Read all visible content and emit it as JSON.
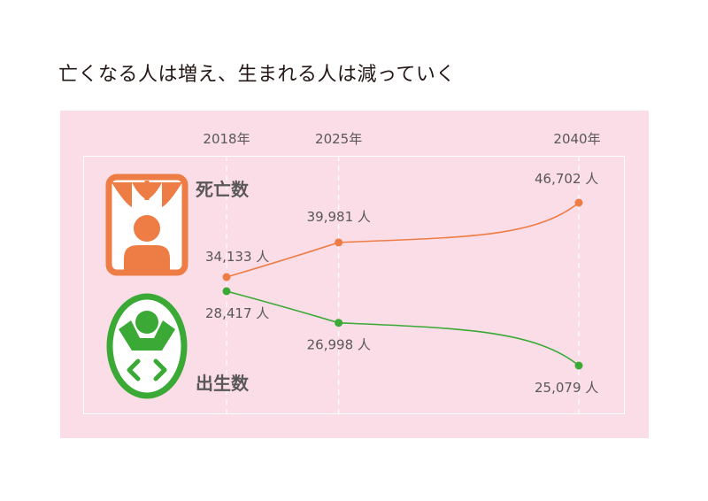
{
  "title": "亡くなる人は増え、生まれる人は減っていく",
  "colors": {
    "deaths": "#ee7d45",
    "births": "#3aa935",
    "panel": "#fadde7",
    "text": "#595757"
  },
  "icons": {
    "deaths": "person-in-curtain-frame-icon",
    "births": "baby-oval-icon"
  },
  "chart_data": {
    "type": "line",
    "x": [
      "2018年",
      "2025年",
      "2040年"
    ],
    "series": [
      {
        "name": "死亡数",
        "values": [
          34133,
          39981,
          46702
        ],
        "labels": [
          "34,133 人",
          "39,981 人",
          "46,702 人"
        ],
        "color": "#ee7d45"
      },
      {
        "name": "出生数",
        "values": [
          28417,
          26998,
          25079
        ],
        "labels": [
          "28,417 人",
          "26,998 人",
          "25,079 人"
        ],
        "color": "#3aa935"
      }
    ],
    "unit": "人"
  }
}
